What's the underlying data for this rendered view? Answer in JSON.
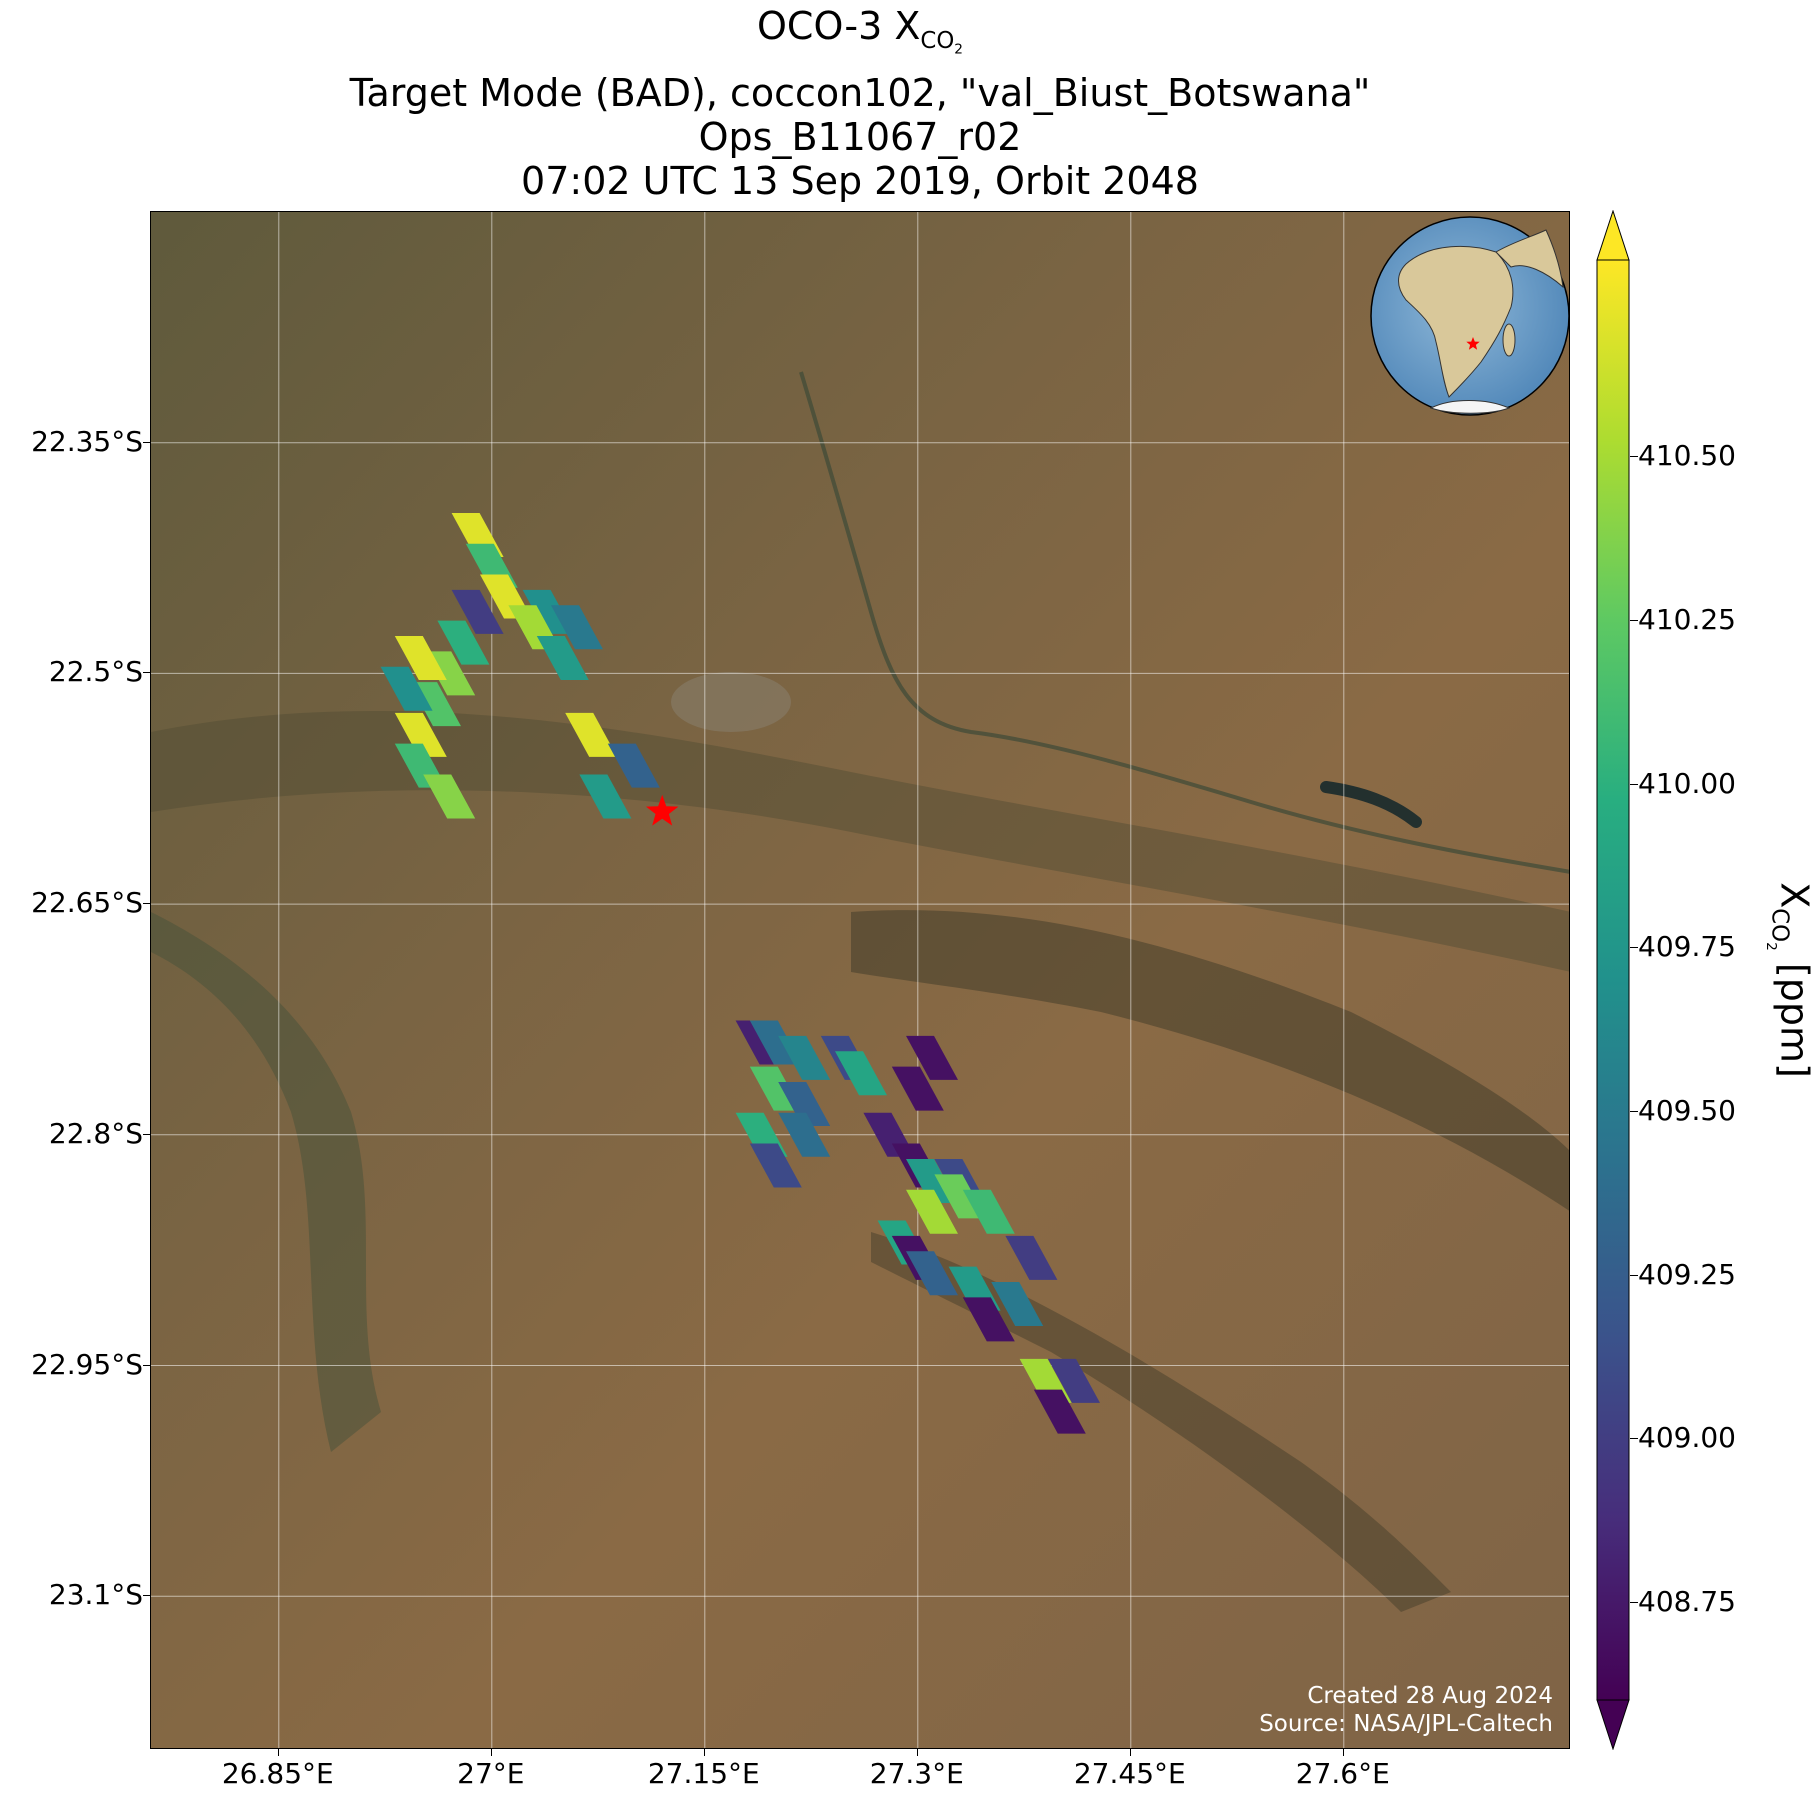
{
  "title": {
    "line1_prefix": "OCO-3 X",
    "line1_sub": "CO",
    "line1_sub2": "2",
    "line2": "Target Mode (BAD), coccon102, \"val_Biust_Botswana\"",
    "line3": "Ops_B11067_r02",
    "line4": "07:02 UTC 13 Sep 2019, Orbit 2048"
  },
  "map": {
    "extent": {
      "lon_min": 26.76,
      "lon_max": 27.76,
      "lat_min": -23.2,
      "lat_max": -22.2
    },
    "lon_ticks": [
      {
        "value": 26.85,
        "label": "26.85°E"
      },
      {
        "value": 27.0,
        "label": "27°E"
      },
      {
        "value": 27.15,
        "label": "27.15°E"
      },
      {
        "value": 27.3,
        "label": "27.3°E"
      },
      {
        "value": 27.45,
        "label": "27.45°E"
      },
      {
        "value": 27.6,
        "label": "27.6°E"
      }
    ],
    "lat_ticks": [
      {
        "value": -22.35,
        "label": "22.35°S"
      },
      {
        "value": -22.5,
        "label": "22.5°S"
      },
      {
        "value": -22.65,
        "label": "22.65°S"
      },
      {
        "value": -22.8,
        "label": "22.8°S"
      },
      {
        "value": -22.95,
        "label": "22.95°S"
      },
      {
        "value": -23.1,
        "label": "23.1°S"
      }
    ],
    "target": {
      "name": "val_Biust_Botswana",
      "lon": 27.12,
      "lat": -22.59,
      "color": "#ff0000"
    },
    "credits": {
      "created": "Created 28 Aug 2024",
      "source": "Source: NASA/JPL-Caltech"
    },
    "inset": {
      "type": "globe",
      "marker_color": "#ff0000"
    }
  },
  "colorbar": {
    "label_prefix": "X",
    "label_sub": "CO",
    "label_sub2": "2",
    "label_suffix": " [ppm]",
    "min": 408.6,
    "max": 410.8,
    "colormap": "viridis",
    "extend": "both",
    "ticks": [
      "408.75",
      "409.00",
      "409.25",
      "409.50",
      "409.75",
      "410.00",
      "410.25",
      "410.50"
    ]
  },
  "chart_data": {
    "type": "scatter",
    "variable": "XCO2 [ppm]",
    "points": [
      {
        "lon": 26.99,
        "lat": -22.41,
        "xco2": 410.7
      },
      {
        "lon": 27.0,
        "lat": -22.43,
        "xco2": 410.1
      },
      {
        "lon": 27.01,
        "lat": -22.45,
        "xco2": 410.7
      },
      {
        "lon": 27.04,
        "lat": -22.46,
        "xco2": 409.7
      },
      {
        "lon": 27.03,
        "lat": -22.47,
        "xco2": 410.5
      },
      {
        "lon": 27.06,
        "lat": -22.47,
        "xco2": 409.5
      },
      {
        "lon": 27.05,
        "lat": -22.49,
        "xco2": 409.8
      },
      {
        "lon": 26.99,
        "lat": -22.46,
        "xco2": 409.0
      },
      {
        "lon": 26.98,
        "lat": -22.48,
        "xco2": 410.0
      },
      {
        "lon": 26.97,
        "lat": -22.5,
        "xco2": 410.4
      },
      {
        "lon": 26.96,
        "lat": -22.52,
        "xco2": 410.2
      },
      {
        "lon": 26.95,
        "lat": -22.54,
        "xco2": 410.7
      },
      {
        "lon": 26.95,
        "lat": -22.49,
        "xco2": 410.7
      },
      {
        "lon": 26.94,
        "lat": -22.51,
        "xco2": 409.7
      },
      {
        "lon": 26.95,
        "lat": -22.56,
        "xco2": 410.1
      },
      {
        "lon": 26.97,
        "lat": -22.58,
        "xco2": 410.4
      },
      {
        "lon": 27.07,
        "lat": -22.54,
        "xco2": 410.7
      },
      {
        "lon": 27.1,
        "lat": -22.56,
        "xco2": 409.3
      },
      {
        "lon": 27.08,
        "lat": -22.58,
        "xco2": 409.8
      },
      {
        "lon": 27.19,
        "lat": -22.74,
        "xco2": 408.8
      },
      {
        "lon": 27.2,
        "lat": -22.74,
        "xco2": 409.4
      },
      {
        "lon": 27.22,
        "lat": -22.75,
        "xco2": 409.6
      },
      {
        "lon": 27.25,
        "lat": -22.75,
        "xco2": 409.1
      },
      {
        "lon": 27.26,
        "lat": -22.76,
        "xco2": 409.9
      },
      {
        "lon": 27.31,
        "lat": -22.75,
        "xco2": 408.7
      },
      {
        "lon": 27.3,
        "lat": -22.77,
        "xco2": 408.7
      },
      {
        "lon": 27.2,
        "lat": -22.77,
        "xco2": 410.2
      },
      {
        "lon": 27.22,
        "lat": -22.78,
        "xco2": 409.3
      },
      {
        "lon": 27.28,
        "lat": -22.8,
        "xco2": 408.8
      },
      {
        "lon": 27.19,
        "lat": -22.8,
        "xco2": 410.0
      },
      {
        "lon": 27.2,
        "lat": -22.82,
        "xco2": 409.1
      },
      {
        "lon": 27.22,
        "lat": -22.8,
        "xco2": 409.4
      },
      {
        "lon": 27.3,
        "lat": -22.82,
        "xco2": 408.7
      },
      {
        "lon": 27.31,
        "lat": -22.83,
        "xco2": 409.8
      },
      {
        "lon": 27.33,
        "lat": -22.83,
        "xco2": 409.1
      },
      {
        "lon": 27.33,
        "lat": -22.84,
        "xco2": 410.3
      },
      {
        "lon": 27.31,
        "lat": -22.85,
        "xco2": 410.5
      },
      {
        "lon": 27.35,
        "lat": -22.85,
        "xco2": 410.1
      },
      {
        "lon": 27.29,
        "lat": -22.87,
        "xco2": 409.9
      },
      {
        "lon": 27.3,
        "lat": -22.88,
        "xco2": 408.7
      },
      {
        "lon": 27.31,
        "lat": -22.89,
        "xco2": 409.3
      },
      {
        "lon": 27.38,
        "lat": -22.88,
        "xco2": 409.0
      },
      {
        "lon": 27.34,
        "lat": -22.9,
        "xco2": 409.8
      },
      {
        "lon": 27.35,
        "lat": -22.92,
        "xco2": 408.7
      },
      {
        "lon": 27.37,
        "lat": -22.91,
        "xco2": 409.5
      },
      {
        "lon": 27.39,
        "lat": -22.96,
        "xco2": 410.5
      },
      {
        "lon": 27.41,
        "lat": -22.96,
        "xco2": 409.0
      },
      {
        "lon": 27.4,
        "lat": -22.98,
        "xco2": 408.7
      }
    ]
  }
}
